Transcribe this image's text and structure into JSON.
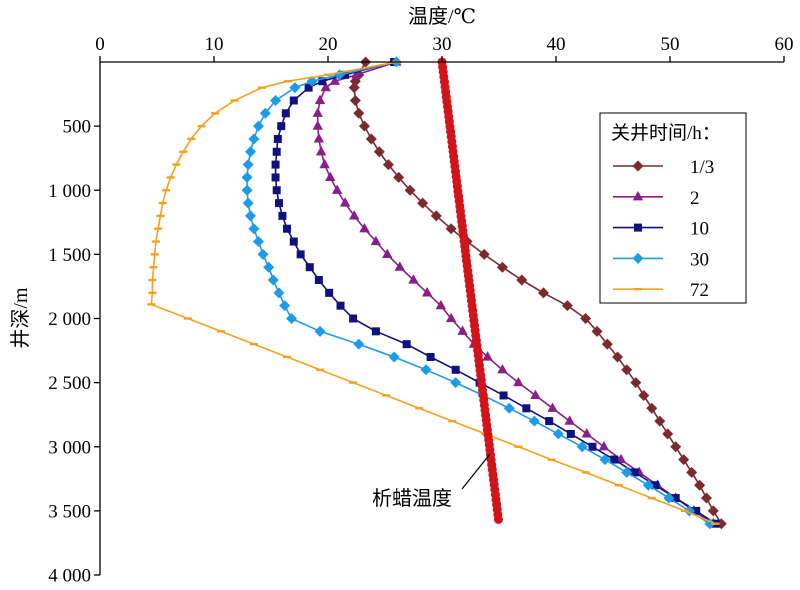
{
  "chart_data": {
    "type": "line",
    "grid": false,
    "x_axis": {
      "label": "温度/℃",
      "position": "top",
      "range": [
        0,
        60
      ],
      "ticks": [
        0,
        10,
        20,
        30,
        40,
        50,
        60
      ],
      "tick_labels": [
        "0",
        "10",
        "20",
        "30",
        "40",
        "50",
        "60"
      ]
    },
    "y_axis": {
      "label": "井深/m",
      "reversed": true,
      "range": [
        0,
        4000
      ],
      "ticks": [
        500,
        1000,
        1500,
        2000,
        2500,
        3000,
        3500,
        4000
      ],
      "tick_labels": [
        "500",
        "1 000",
        "1 500",
        "2 000",
        "2 500",
        "3 000",
        "3 500",
        "4 000"
      ]
    },
    "legend": {
      "title": "关井时间/h：",
      "position": "top-right"
    },
    "series": [
      {
        "name": "1/3",
        "color": "#7B2B2E",
        "marker": "diamond",
        "in_legend": true,
        "points": [
          [
            23.3,
            0
          ],
          [
            22.7,
            100
          ],
          [
            22.4,
            150
          ],
          [
            22.3,
            200
          ],
          [
            22.4,
            300
          ],
          [
            22.7,
            400
          ],
          [
            23.2,
            500
          ],
          [
            23.8,
            600
          ],
          [
            24.5,
            700
          ],
          [
            25.3,
            800
          ],
          [
            26.2,
            900
          ],
          [
            27.2,
            1000
          ],
          [
            28.3,
            1100
          ],
          [
            29.5,
            1200
          ],
          [
            30.8,
            1300
          ],
          [
            32.2,
            1400
          ],
          [
            33.7,
            1500
          ],
          [
            35.3,
            1600
          ],
          [
            37.0,
            1700
          ],
          [
            38.9,
            1800
          ],
          [
            41.0,
            1900
          ],
          [
            42.6,
            2000
          ],
          [
            43.6,
            2100
          ],
          [
            44.5,
            2200
          ],
          [
            45.4,
            2300
          ],
          [
            46.2,
            2400
          ],
          [
            47.0,
            2500
          ],
          [
            47.7,
            2600
          ],
          [
            48.4,
            2700
          ],
          [
            49.1,
            2800
          ],
          [
            49.8,
            2900
          ],
          [
            50.5,
            3000
          ],
          [
            51.2,
            3100
          ],
          [
            51.9,
            3200
          ],
          [
            52.6,
            3300
          ],
          [
            53.2,
            3400
          ],
          [
            53.8,
            3500
          ],
          [
            54.5,
            3600
          ]
        ]
      },
      {
        "name": "2",
        "color": "#8A1E8A",
        "marker": "triangle",
        "in_legend": true,
        "points": [
          [
            26.0,
            0
          ],
          [
            22.5,
            100
          ],
          [
            20.6,
            150
          ],
          [
            19.8,
            200
          ],
          [
            19.3,
            300
          ],
          [
            19.1,
            400
          ],
          [
            19.1,
            500
          ],
          [
            19.2,
            600
          ],
          [
            19.4,
            700
          ],
          [
            19.7,
            800
          ],
          [
            20.2,
            900
          ],
          [
            20.8,
            1000
          ],
          [
            21.5,
            1100
          ],
          [
            22.3,
            1200
          ],
          [
            23.2,
            1300
          ],
          [
            24.2,
            1400
          ],
          [
            25.2,
            1500
          ],
          [
            26.3,
            1600
          ],
          [
            27.5,
            1700
          ],
          [
            28.7,
            1800
          ],
          [
            29.9,
            1900
          ],
          [
            30.8,
            2000
          ],
          [
            31.8,
            2100
          ],
          [
            32.8,
            2200
          ],
          [
            34.0,
            2300
          ],
          [
            35.3,
            2400
          ],
          [
            36.7,
            2500
          ],
          [
            38.2,
            2600
          ],
          [
            39.7,
            2700
          ],
          [
            41.2,
            2800
          ],
          [
            42.7,
            2900
          ],
          [
            44.2,
            3000
          ],
          [
            45.7,
            3100
          ],
          [
            47.3,
            3200
          ],
          [
            48.9,
            3300
          ],
          [
            50.5,
            3400
          ],
          [
            52.1,
            3500
          ],
          [
            53.8,
            3600
          ]
        ]
      },
      {
        "name": "10",
        "color": "#10107F",
        "marker": "square",
        "in_legend": true,
        "points": [
          [
            25.8,
            0
          ],
          [
            21.5,
            100
          ],
          [
            19.5,
            150
          ],
          [
            18.3,
            200
          ],
          [
            17.0,
            300
          ],
          [
            16.3,
            400
          ],
          [
            15.9,
            500
          ],
          [
            15.6,
            600
          ],
          [
            15.5,
            700
          ],
          [
            15.4,
            800
          ],
          [
            15.4,
            900
          ],
          [
            15.5,
            1000
          ],
          [
            15.7,
            1100
          ],
          [
            16.0,
            1200
          ],
          [
            16.4,
            1300
          ],
          [
            17.0,
            1400
          ],
          [
            17.6,
            1500
          ],
          [
            18.4,
            1600
          ],
          [
            19.2,
            1700
          ],
          [
            20.1,
            1800
          ],
          [
            21.1,
            1900
          ],
          [
            22.2,
            2000
          ],
          [
            24.2,
            2100
          ],
          [
            26.9,
            2200
          ],
          [
            29.0,
            2300
          ],
          [
            31.2,
            2400
          ],
          [
            33.3,
            2500
          ],
          [
            35.4,
            2600
          ],
          [
            37.4,
            2700
          ],
          [
            39.4,
            2800
          ],
          [
            41.3,
            2900
          ],
          [
            43.2,
            3000
          ],
          [
            45.1,
            3100
          ],
          [
            46.9,
            3200
          ],
          [
            48.7,
            3300
          ],
          [
            50.5,
            3400
          ],
          [
            52.3,
            3500
          ],
          [
            54.0,
            3600
          ]
        ]
      },
      {
        "name": "30",
        "color": "#1E9BE8",
        "marker": "diamond",
        "in_legend": true,
        "points": [
          [
            26.0,
            0
          ],
          [
            21.0,
            100
          ],
          [
            18.6,
            150
          ],
          [
            17.1,
            200
          ],
          [
            15.4,
            300
          ],
          [
            14.5,
            400
          ],
          [
            13.9,
            500
          ],
          [
            13.5,
            600
          ],
          [
            13.2,
            700
          ],
          [
            13.0,
            800
          ],
          [
            12.9,
            900
          ],
          [
            12.9,
            1000
          ],
          [
            13.0,
            1100
          ],
          [
            13.2,
            1200
          ],
          [
            13.5,
            1300
          ],
          [
            13.9,
            1400
          ],
          [
            14.3,
            1500
          ],
          [
            14.8,
            1600
          ],
          [
            15.2,
            1700
          ],
          [
            15.7,
            1800
          ],
          [
            16.2,
            1900
          ],
          [
            16.8,
            2000
          ],
          [
            19.3,
            2100
          ],
          [
            22.7,
            2200
          ],
          [
            25.8,
            2300
          ],
          [
            28.6,
            2400
          ],
          [
            31.2,
            2500
          ],
          [
            33.6,
            2600
          ],
          [
            35.9,
            2700
          ],
          [
            38.1,
            2800
          ],
          [
            40.2,
            2900
          ],
          [
            42.3,
            3000
          ],
          [
            44.3,
            3100
          ],
          [
            46.2,
            3200
          ],
          [
            48.1,
            3300
          ],
          [
            49.9,
            3400
          ],
          [
            51.7,
            3500
          ],
          [
            53.5,
            3600
          ]
        ]
      },
      {
        "name": "72",
        "color": "#F4A11D",
        "marker": "dash",
        "in_legend": true,
        "points": [
          [
            26.0,
            0
          ],
          [
            20.0,
            100
          ],
          [
            16.5,
            150
          ],
          [
            14.2,
            200
          ],
          [
            11.8,
            300
          ],
          [
            10.1,
            400
          ],
          [
            8.9,
            500
          ],
          [
            8.0,
            600
          ],
          [
            7.3,
            700
          ],
          [
            6.7,
            800
          ],
          [
            6.2,
            900
          ],
          [
            5.8,
            1000
          ],
          [
            5.5,
            1100
          ],
          [
            5.3,
            1200
          ],
          [
            5.1,
            1300
          ],
          [
            4.9,
            1400
          ],
          [
            4.8,
            1500
          ],
          [
            4.7,
            1600
          ],
          [
            4.6,
            1700
          ],
          [
            4.6,
            1800
          ],
          [
            4.5,
            1890
          ],
          [
            7.7,
            2000
          ],
          [
            10.6,
            2100
          ],
          [
            13.5,
            2200
          ],
          [
            16.4,
            2300
          ],
          [
            19.3,
            2400
          ],
          [
            22.2,
            2500
          ],
          [
            25.1,
            2600
          ],
          [
            28.0,
            2700
          ],
          [
            30.9,
            2800
          ],
          [
            33.8,
            2900
          ],
          [
            36.7,
            3000
          ],
          [
            39.6,
            3100
          ],
          [
            42.6,
            3200
          ],
          [
            45.5,
            3300
          ],
          [
            48.4,
            3400
          ],
          [
            51.3,
            3500
          ],
          [
            54.0,
            3600
          ]
        ]
      },
      {
        "name": "析蜡温度",
        "color": "#D0141A",
        "marker": "dots",
        "in_legend": false,
        "points": [
          [
            30.0,
            0
          ],
          [
            35.0,
            3600
          ]
        ]
      }
    ]
  }
}
